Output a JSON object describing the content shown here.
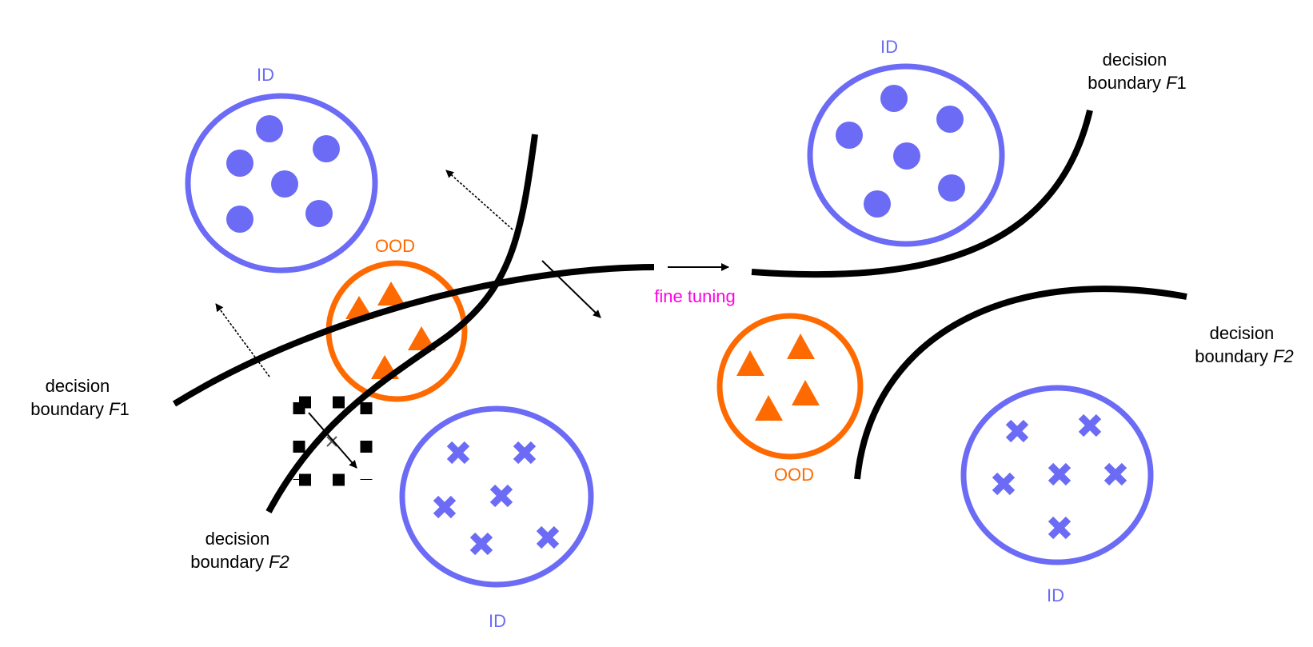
{
  "colors": {
    "id": "#6b6bf5",
    "ood": "#ff6a00",
    "boundary": "#000000",
    "fine_tuning": "#ff00e6",
    "background": "#ffffff"
  },
  "icons": {
    "id_sample": "filled-circle",
    "id_sample_alt": "x-cross",
    "ood_sample": "filled-triangle",
    "selection": "dashed-square-box"
  },
  "left": {
    "id_top_label": "ID",
    "ood_label": "OOD",
    "id_bottom_label": "ID",
    "boundary_f1": {
      "line1": "decision",
      "line2_prefix": "boundary ",
      "line2_var": "F",
      "line2_suffix": "1"
    },
    "boundary_f2": {
      "line1": "decision",
      "line2_prefix": "boundary ",
      "line2_var": "F2",
      "line2_suffix": ""
    }
  },
  "transition": {
    "label": "fine tuning"
  },
  "right": {
    "id_top_label": "ID",
    "ood_label": "OOD",
    "id_bottom_label": "ID",
    "boundary_f1": {
      "line1": "decision",
      "line2_prefix": "boundary ",
      "line2_var": "F",
      "line2_suffix": "1"
    },
    "boundary_f2": {
      "line1": "decision",
      "line2_prefix": "boundary ",
      "line2_var": "F2",
      "line2_suffix": ""
    }
  }
}
